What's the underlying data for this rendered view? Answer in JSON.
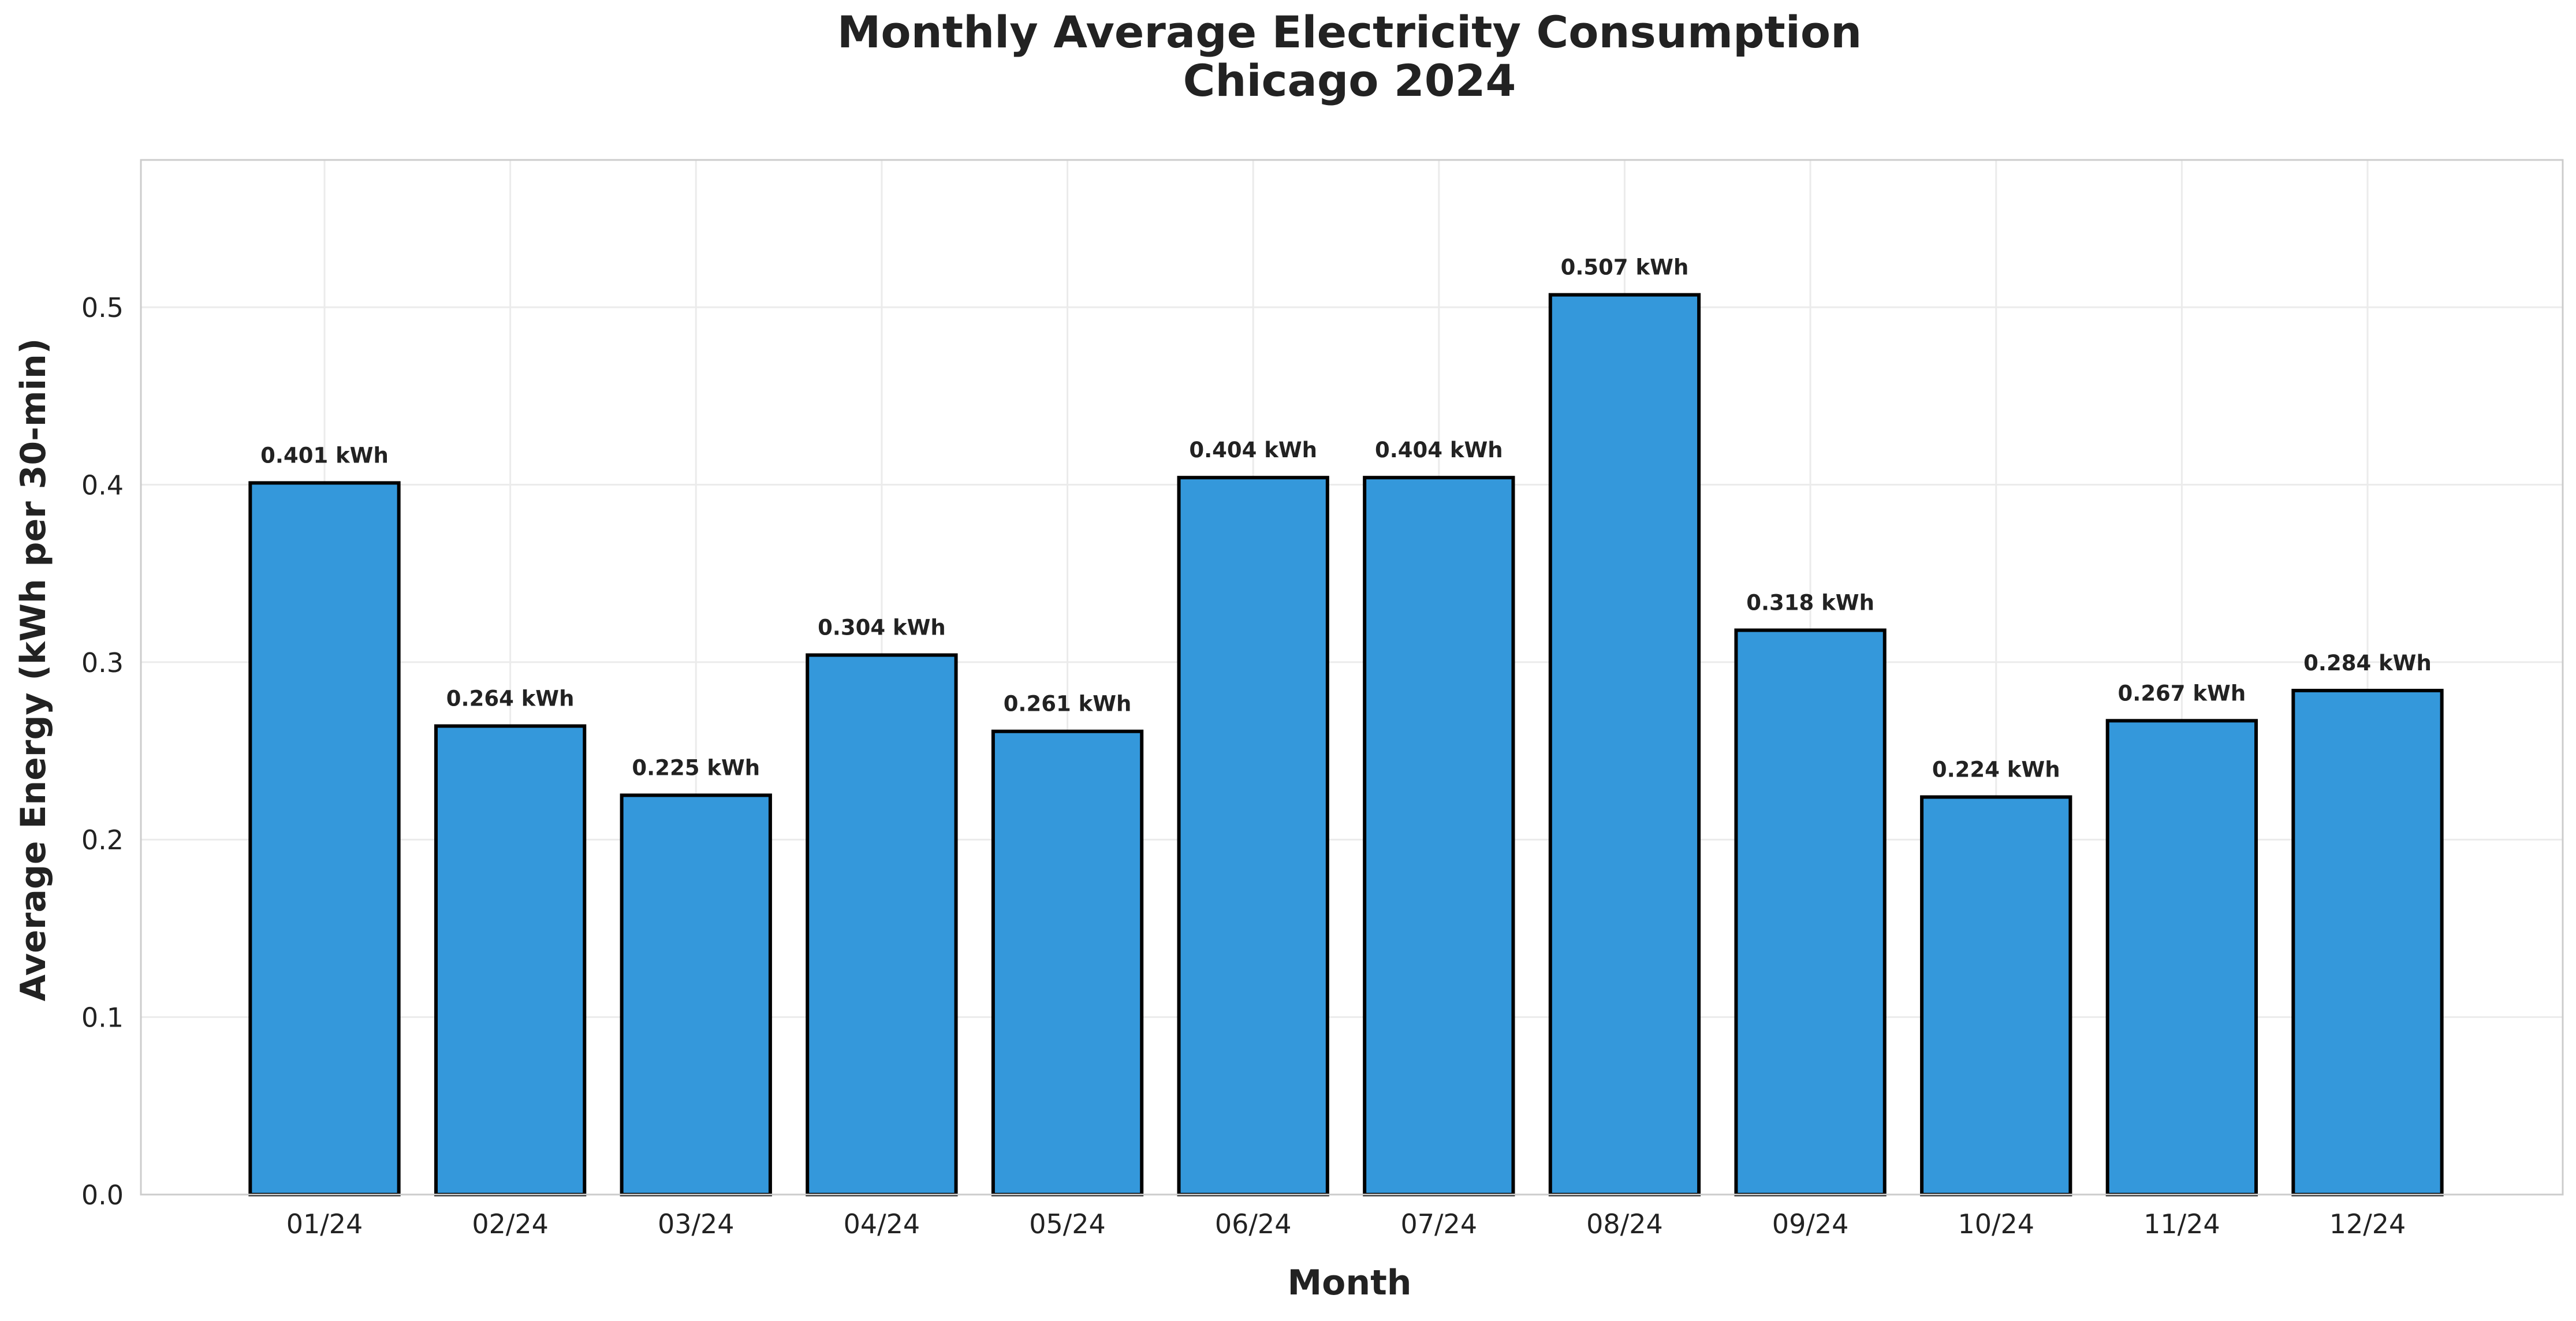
{
  "chart_data": {
    "type": "bar",
    "title_line1": "Monthly Average Electricity Consumption",
    "title_line2": "Chicago 2024",
    "xlabel": "Month",
    "ylabel": "Average Energy (kWh per 30-min)",
    "categories": [
      "01/24",
      "02/24",
      "03/24",
      "04/24",
      "05/24",
      "06/24",
      "07/24",
      "08/24",
      "09/24",
      "10/24",
      "11/24",
      "12/24"
    ],
    "values": [
      0.401,
      0.264,
      0.225,
      0.304,
      0.261,
      0.404,
      0.404,
      0.507,
      0.318,
      0.224,
      0.267,
      0.284
    ],
    "value_labels": [
      "0.401 kWh",
      "0.264 kWh",
      "0.225 kWh",
      "0.304 kWh",
      "0.261 kWh",
      "0.404 kWh",
      "0.404 kWh",
      "0.507 kWh",
      "0.318 kWh",
      "0.224 kWh",
      "0.267 kWh",
      "0.284 kWh"
    ],
    "ylim": [
      0,
      0.583
    ],
    "yticks": [
      0.0,
      0.1,
      0.2,
      0.3,
      0.4,
      0.5
    ],
    "ytick_labels": [
      "0.0",
      "0.1",
      "0.2",
      "0.3",
      "0.4",
      "0.5"
    ],
    "grid": true,
    "bar_color": "#3498db",
    "bar_edge_color": "#000000",
    "text_color": "#222222",
    "grid_color": "#ebebeb",
    "frame_color": "#cccccc"
  }
}
